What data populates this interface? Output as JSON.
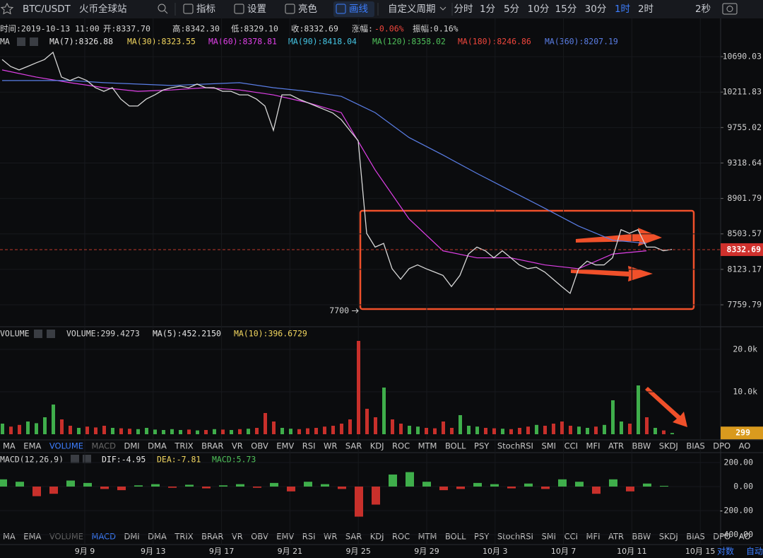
{
  "toolbar": {
    "symbol": "BTC/USDT",
    "exchange": "火币全球站",
    "tools": [
      "指标",
      "设置",
      "亮色",
      "画线"
    ],
    "active_tool_index": 3,
    "custom_period": "自定义周期",
    "periods": [
      "分时",
      "1分",
      "5分",
      "10分",
      "15分",
      "30分",
      "1时",
      "2时"
    ],
    "active_period_index": 6,
    "refresh": "2秒"
  },
  "info": {
    "time": "时间:2019-10-13 11:00",
    "open": "开:8337.70",
    "high": "高:8342.30",
    "low": "低:8329.10",
    "close": "收:8332.69",
    "change_label": "涨幅:",
    "change": "-0.06%",
    "amplitude": "振幅:0.16%"
  },
  "ma_legend": {
    "title": "MA",
    "items": [
      {
        "label": "MA(7):8326.88",
        "color": "#e8e8e8"
      },
      {
        "label": "MA(30):8323.55",
        "color": "#f2d65f"
      },
      {
        "label": "MA(60):8378.81",
        "color": "#e040e8"
      },
      {
        "label": "MA(90):8418.04",
        "color": "#45c7e6"
      },
      {
        "label": "MA(120):8358.02",
        "color": "#4fc15a"
      },
      {
        "label": "MA(180):8246.86",
        "color": "#f0463c"
      },
      {
        "label": "MA(360):8207.19",
        "color": "#5a7ee6"
      }
    ]
  },
  "price_panel": {
    "yscale": "log",
    "ylim": [
      7557,
      11190
    ],
    "yticks": [
      10690.03,
      10211.83,
      9755.02,
      9318.64,
      8901.79,
      8503.57,
      8123.17,
      7759.79
    ],
    "last_price": 8332.69,
    "low_marker": 7700,
    "line_color": "#d8d8d8",
    "close": [
      10650,
      10555,
      10508,
      10555,
      10604,
      10650,
      10750,
      10412,
      10365,
      10412,
      10365,
      10270,
      10222,
      10270,
      10120,
      10030,
      10030,
      10120,
      10175,
      10240,
      10270,
      10290,
      10270,
      10318,
      10270,
      10270,
      10222,
      10222,
      10175,
      10175,
      10120,
      10030,
      9720,
      10175,
      10175,
      10120,
      10075,
      10030,
      9985,
      9940,
      9855,
      9720,
      9590,
      8510,
      8360,
      8400,
      8130,
      8020,
      8130,
      8170,
      8130,
      8095,
      8060,
      7945,
      8060,
      8285,
      8360,
      8320,
      8245,
      8320,
      8245,
      8170,
      8130,
      8145,
      8095,
      8020,
      7945,
      7875,
      8130,
      8210,
      8170,
      8170,
      8245,
      8550,
      8510,
      8550,
      8360,
      8360,
      8320,
      8335
    ],
    "ma_lines": [
      {
        "color": "#e040e8",
        "values": [
          10508,
          10412,
          10337,
          10270,
          10222,
          10240,
          10270,
          10240,
          10175,
          10075,
          9945,
          9235,
          8670,
          8320,
          8245,
          8245,
          8170,
          8130,
          8285,
          8320
        ]
      },
      {
        "color": "#5a7ee6",
        "values": [
          10365,
          10365,
          10365,
          10337,
          10318,
          10299,
          10318,
          10337,
          10270,
          10222,
          10156,
          9945,
          9630,
          9415,
          9195,
          8990,
          8790,
          8590,
          8435,
          8400
        ]
      }
    ]
  },
  "volume_panel": {
    "title": "VOLUME",
    "labels": [
      {
        "text": "VOLUME:299.4273",
        "color": "#d6d6d6"
      },
      {
        "text": "MA(5):452.2150",
        "color": "#e8e8e8"
      },
      {
        "text": "MA(10):396.6729",
        "color": "#f2d65f"
      }
    ],
    "ylim": [
      0,
      25333
    ],
    "yticks": [
      {
        "value": 10000,
        "label": "10.0k"
      },
      {
        "value": 20000,
        "label": "20.0k"
      }
    ],
    "values": [
      2500,
      1800,
      2200,
      3000,
      2600,
      4000,
      7000,
      3500,
      2000,
      1500,
      1800,
      1600,
      2000,
      1500,
      1400,
      1300,
      1200,
      1500,
      1100,
      1000,
      1200,
      1000,
      1100,
      900,
      1000,
      1200,
      1100,
      1000,
      1200,
      1300,
      1500,
      5000,
      3000,
      1500,
      1300,
      1200,
      1400,
      1500,
      1800,
      2000,
      2500,
      3500,
      22000,
      6000,
      4000,
      11000,
      3500,
      2500,
      2000,
      1800,
      1500,
      1400,
      3000,
      1500,
      4500,
      2000,
      1800,
      1500,
      1400,
      1300,
      1200,
      1500,
      1800,
      2200,
      2000,
      2500,
      3000,
      2000,
      1800,
      1500,
      1800,
      2200,
      8000,
      3000,
      2500,
      11500,
      4000,
      1500,
      900,
      299
    ]
  },
  "indicator_tabs": {
    "items": [
      "MA",
      "EMA",
      "VOLUME",
      "MACD",
      "DMI",
      "DMA",
      "TRIX",
      "BRAR",
      "VR",
      "OBV",
      "EMV",
      "RSI",
      "WR",
      "SAR",
      "KDJ",
      "ROC",
      "MTM",
      "BOLL",
      "PSY",
      "StochRSI",
      "SMI",
      "CCI",
      "MFI",
      "ATR",
      "BBW",
      "SKDJ",
      "BIAS",
      "DPO",
      "AO"
    ],
    "rows": [
      {
        "active": 2,
        "dim": 3
      },
      {
        "active": 3,
        "dim": 2
      }
    ]
  },
  "macd_panel": {
    "labels": [
      {
        "text": "MACD(12,26,9)",
        "color": "#d6d6d6"
      },
      {
        "text": "DIF:-4.95",
        "color": "#e8e8e8"
      },
      {
        "text": "DEA:-7.81",
        "color": "#f2d65f"
      },
      {
        "text": "MACD:5.73",
        "color": "#4fc15a"
      }
    ],
    "ylim": [
      -482,
      282
    ],
    "yticks": [
      {
        "value": 200,
        "label": "200.00"
      },
      {
        "value": 0,
        "label": "0.00"
      },
      {
        "value": -200,
        "label": "-200.00"
      },
      {
        "value": -400,
        "label": "-400.00"
      }
    ],
    "values": [
      60,
      40,
      -80,
      -60,
      50,
      30,
      -20,
      -30,
      10,
      20,
      -10,
      15,
      -15,
      10,
      20,
      -10,
      30,
      -40,
      40,
      20,
      -20,
      -250,
      -150,
      100,
      120,
      40,
      -30,
      -20,
      30,
      20,
      -15,
      25,
      -20,
      60,
      40,
      -60,
      60,
      -40,
      25,
      6
    ]
  },
  "x_axis": {
    "labels": [
      "9月 9",
      "9月 13",
      "9月 17",
      "9月 21",
      "9月 25",
      "9月 29",
      "10月 3",
      "10月 7",
      "10月 11",
      "10月 15"
    ]
  },
  "footer": {
    "log": "对数",
    "auto": "自动"
  }
}
